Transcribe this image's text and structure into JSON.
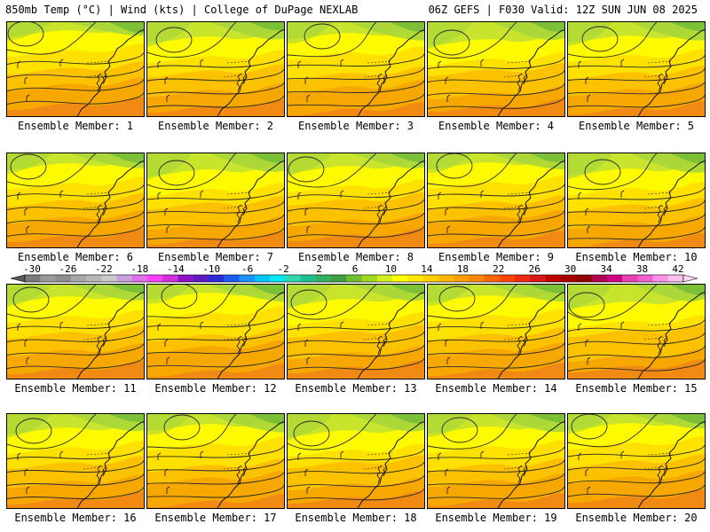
{
  "header": {
    "left": "850mb Temp (°C) | Wind (kts) | College of DuPage NEXLAB",
    "right": "06Z GEFS | F030 Valid: 12Z SUN JUN 08 2025"
  },
  "colorbar": {
    "labels": [
      "-30",
      "-26",
      "-22",
      "-18",
      "-14",
      "-10",
      "-6",
      "-2",
      "2",
      "6",
      "10",
      "14",
      "18",
      "22",
      "26",
      "30",
      "34",
      "38",
      "42"
    ],
    "colors": [
      "#7a7a7a",
      "#9a9a9a",
      "#8f8f8f",
      "#a8a8a8",
      "#b8b8b8",
      "#c9c9c9",
      "#c8a0e0",
      "#e070e8",
      "#ff40ff",
      "#d030d8",
      "#9010c8",
      "#6018c0",
      "#2a2ad8",
      "#1e5af0",
      "#1e90ff",
      "#00c8ff",
      "#00e8f0",
      "#30d8b0",
      "#20c090",
      "#30b060",
      "#40a040",
      "#70c030",
      "#a0d820",
      "#d0f020",
      "#ffff00",
      "#ffe600",
      "#ffd000",
      "#ffb800",
      "#ffa000",
      "#ff8800",
      "#ff6600",
      "#ff4400",
      "#ee2a10",
      "#d81818",
      "#c00000",
      "#a80000",
      "#900000",
      "#b00050",
      "#d00080",
      "#e840b0",
      "#f060d0",
      "#ff90e8",
      "#ffc0f0"
    ],
    "left_cap": "#5a5a5a",
    "right_cap": "#ffd8f8"
  },
  "map_colors": {
    "t10": "#a7d63a",
    "t12": "#c8e42c",
    "t14": "#fefb00",
    "t16": "#ffe100",
    "t18": "#fcc200",
    "t20": "#f7a800",
    "t22": "#f18a12",
    "north": "#7cc038"
  },
  "panels": [
    {
      "label": "Ensemble Member: 1"
    },
    {
      "label": "Ensemble Member: 2"
    },
    {
      "label": "Ensemble Member: 3"
    },
    {
      "label": "Ensemble Member: 4"
    },
    {
      "label": "Ensemble Member: 5"
    },
    {
      "label": "Ensemble Member: 6"
    },
    {
      "label": "Ensemble Member: 7"
    },
    {
      "label": "Ensemble Member: 8"
    },
    {
      "label": "Ensemble Member: 9"
    },
    {
      "label": "Ensemble Member: 10"
    },
    {
      "label": "Ensemble Member: 11"
    },
    {
      "label": "Ensemble Member: 12"
    },
    {
      "label": "Ensemble Member: 13"
    },
    {
      "label": "Ensemble Member: 14"
    },
    {
      "label": "Ensemble Member: 15"
    },
    {
      "label": "Ensemble Member: 16"
    },
    {
      "label": "Ensemble Member: 17"
    },
    {
      "label": "Ensemble Member: 18"
    },
    {
      "label": "Ensemble Member: 19"
    },
    {
      "label": "Ensemble Member: 20"
    }
  ]
}
